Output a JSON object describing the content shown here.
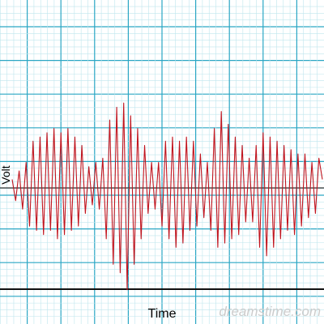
{
  "chart_data": {
    "type": "line",
    "y_label": "Volt",
    "x_label": "Time",
    "watermark": "dreamstime.com",
    "x": [
      0,
      1,
      2,
      3,
      4,
      5,
      6,
      7,
      8,
      9,
      10,
      11,
      12,
      13,
      14,
      15,
      16,
      17,
      18,
      19,
      20,
      21,
      22,
      23,
      24,
      25,
      26,
      27,
      28,
      29,
      30,
      31,
      32,
      33,
      34,
      35,
      36,
      37,
      38,
      39,
      40,
      41,
      42,
      43,
      44,
      45,
      46,
      47,
      48,
      49,
      50,
      51,
      52,
      53,
      54,
      55,
      56,
      57,
      58,
      59,
      60,
      61,
      62,
      63,
      64,
      65,
      66,
      67,
      68,
      69,
      70,
      71,
      72,
      73,
      74,
      75,
      76,
      77,
      78,
      79,
      80,
      81,
      82,
      83,
      84,
      85,
      86,
      87,
      88,
      89
    ],
    "series": [
      {
        "color": "#c0141e",
        "values": [
          0.1,
          -0.15,
          0.2,
          -0.25,
          0.3,
          -0.45,
          0.55,
          -0.5,
          0.6,
          -0.55,
          0.65,
          -0.5,
          0.7,
          -0.6,
          0.65,
          -0.55,
          0.7,
          -0.5,
          0.6,
          -0.45,
          0.5,
          -0.3,
          0.25,
          -0.2,
          0.3,
          -0.25,
          0.35,
          -0.6,
          0.8,
          -0.9,
          0.95,
          -1.0,
          1.0,
          -1.2,
          0.85,
          -0.9,
          0.7,
          -0.6,
          0.5,
          -0.3,
          0.3,
          -0.25,
          0.3,
          -0.45,
          0.55,
          -0.6,
          0.6,
          -0.7,
          0.55,
          -0.65,
          0.6,
          -0.5,
          0.55,
          -0.45,
          0.4,
          -0.35,
          0.3,
          -0.5,
          0.7,
          -0.7,
          0.9,
          -0.65,
          0.75,
          -0.6,
          0.6,
          -0.55,
          0.5,
          -0.4,
          0.35,
          -0.4,
          0.5,
          -0.7,
          0.65,
          -0.8,
          0.6,
          -0.7,
          0.55,
          -0.6,
          0.5,
          -0.5,
          0.45,
          -0.55,
          0.4,
          -0.45,
          0.4,
          -0.35,
          0.3,
          -0.3,
          0.35,
          0.1
        ]
      }
    ],
    "xlim": [
      0,
      89
    ],
    "ylim": [
      -1.25,
      1.25
    ]
  }
}
